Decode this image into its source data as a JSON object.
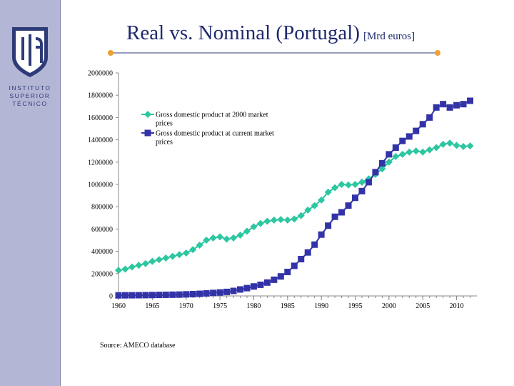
{
  "slide": {
    "title": "Real vs. Nominal (Portugal)",
    "title_unit": "[Mrd euros]",
    "source": "Source: AMECO database",
    "colors": {
      "sidebar": "#b3b6d5",
      "title": "#1f2a6e",
      "accent": "#f0a030"
    }
  },
  "logo": {
    "line1": "INSTITUTO",
    "line2": "SUPERIOR",
    "line3": "TÉCNICO"
  },
  "chart_data": {
    "type": "line",
    "title": "Real vs. Nominal (Portugal) [Mrd euros]",
    "xlabel": "",
    "ylabel": "",
    "xlim": [
      1960,
      2013
    ],
    "ylim": [
      0,
      2000000
    ],
    "x_ticks": [
      1960,
      1965,
      1970,
      1975,
      1980,
      1985,
      1990,
      1995,
      2000,
      2005,
      2010
    ],
    "y_ticks": [
      0,
      200000,
      400000,
      600000,
      800000,
      1000000,
      1200000,
      1400000,
      1600000,
      1800000,
      2000000
    ],
    "legend_position": "top-left",
    "x": [
      1960,
      1961,
      1962,
      1963,
      1964,
      1965,
      1966,
      1967,
      1968,
      1969,
      1970,
      1971,
      1972,
      1973,
      1974,
      1975,
      1976,
      1977,
      1978,
      1979,
      1980,
      1981,
      1982,
      1983,
      1984,
      1985,
      1986,
      1987,
      1988,
      1989,
      1990,
      1991,
      1992,
      1993,
      1994,
      1995,
      1996,
      1997,
      1998,
      1999,
      2000,
      2001,
      2002,
      2003,
      2004,
      2005,
      2006,
      2007,
      2008,
      2009,
      2010,
      2011,
      2012
    ],
    "series": [
      {
        "name": "Gross domestic product at 2000 market prices",
        "color": "#2cc7a0",
        "marker": "diamond",
        "values": [
          230000,
          240000,
          260000,
          275000,
          290000,
          310000,
          325000,
          340000,
          355000,
          370000,
          385000,
          415000,
          455000,
          500000,
          520000,
          530000,
          510000,
          520000,
          545000,
          580000,
          620000,
          650000,
          670000,
          680000,
          685000,
          680000,
          690000,
          720000,
          770000,
          810000,
          860000,
          930000,
          970000,
          1000000,
          995000,
          1000000,
          1020000,
          1050000,
          1090000,
          1140000,
          1200000,
          1250000,
          1270000,
          1290000,
          1300000,
          1290000,
          1310000,
          1330000,
          1360000,
          1370000,
          1350000,
          1340000,
          1345000
        ]
      },
      {
        "name": "Gross domestic product at current market prices",
        "color": "#3333a8",
        "marker": "square",
        "values": [
          5000,
          5500,
          6000,
          6500,
          7000,
          8000,
          9000,
          10000,
          11000,
          12000,
          14000,
          16000,
          19000,
          23000,
          27000,
          31000,
          36000,
          45000,
          58000,
          70000,
          85000,
          100000,
          120000,
          145000,
          175000,
          215000,
          270000,
          330000,
          390000,
          460000,
          550000,
          630000,
          710000,
          750000,
          810000,
          880000,
          940000,
          1020000,
          1110000,
          1190000,
          1270000,
          1330000,
          1390000,
          1430000,
          1480000,
          1540000,
          1600000,
          1690000,
          1720000,
          1690000,
          1710000,
          1720000,
          1750000
        ]
      }
    ]
  }
}
